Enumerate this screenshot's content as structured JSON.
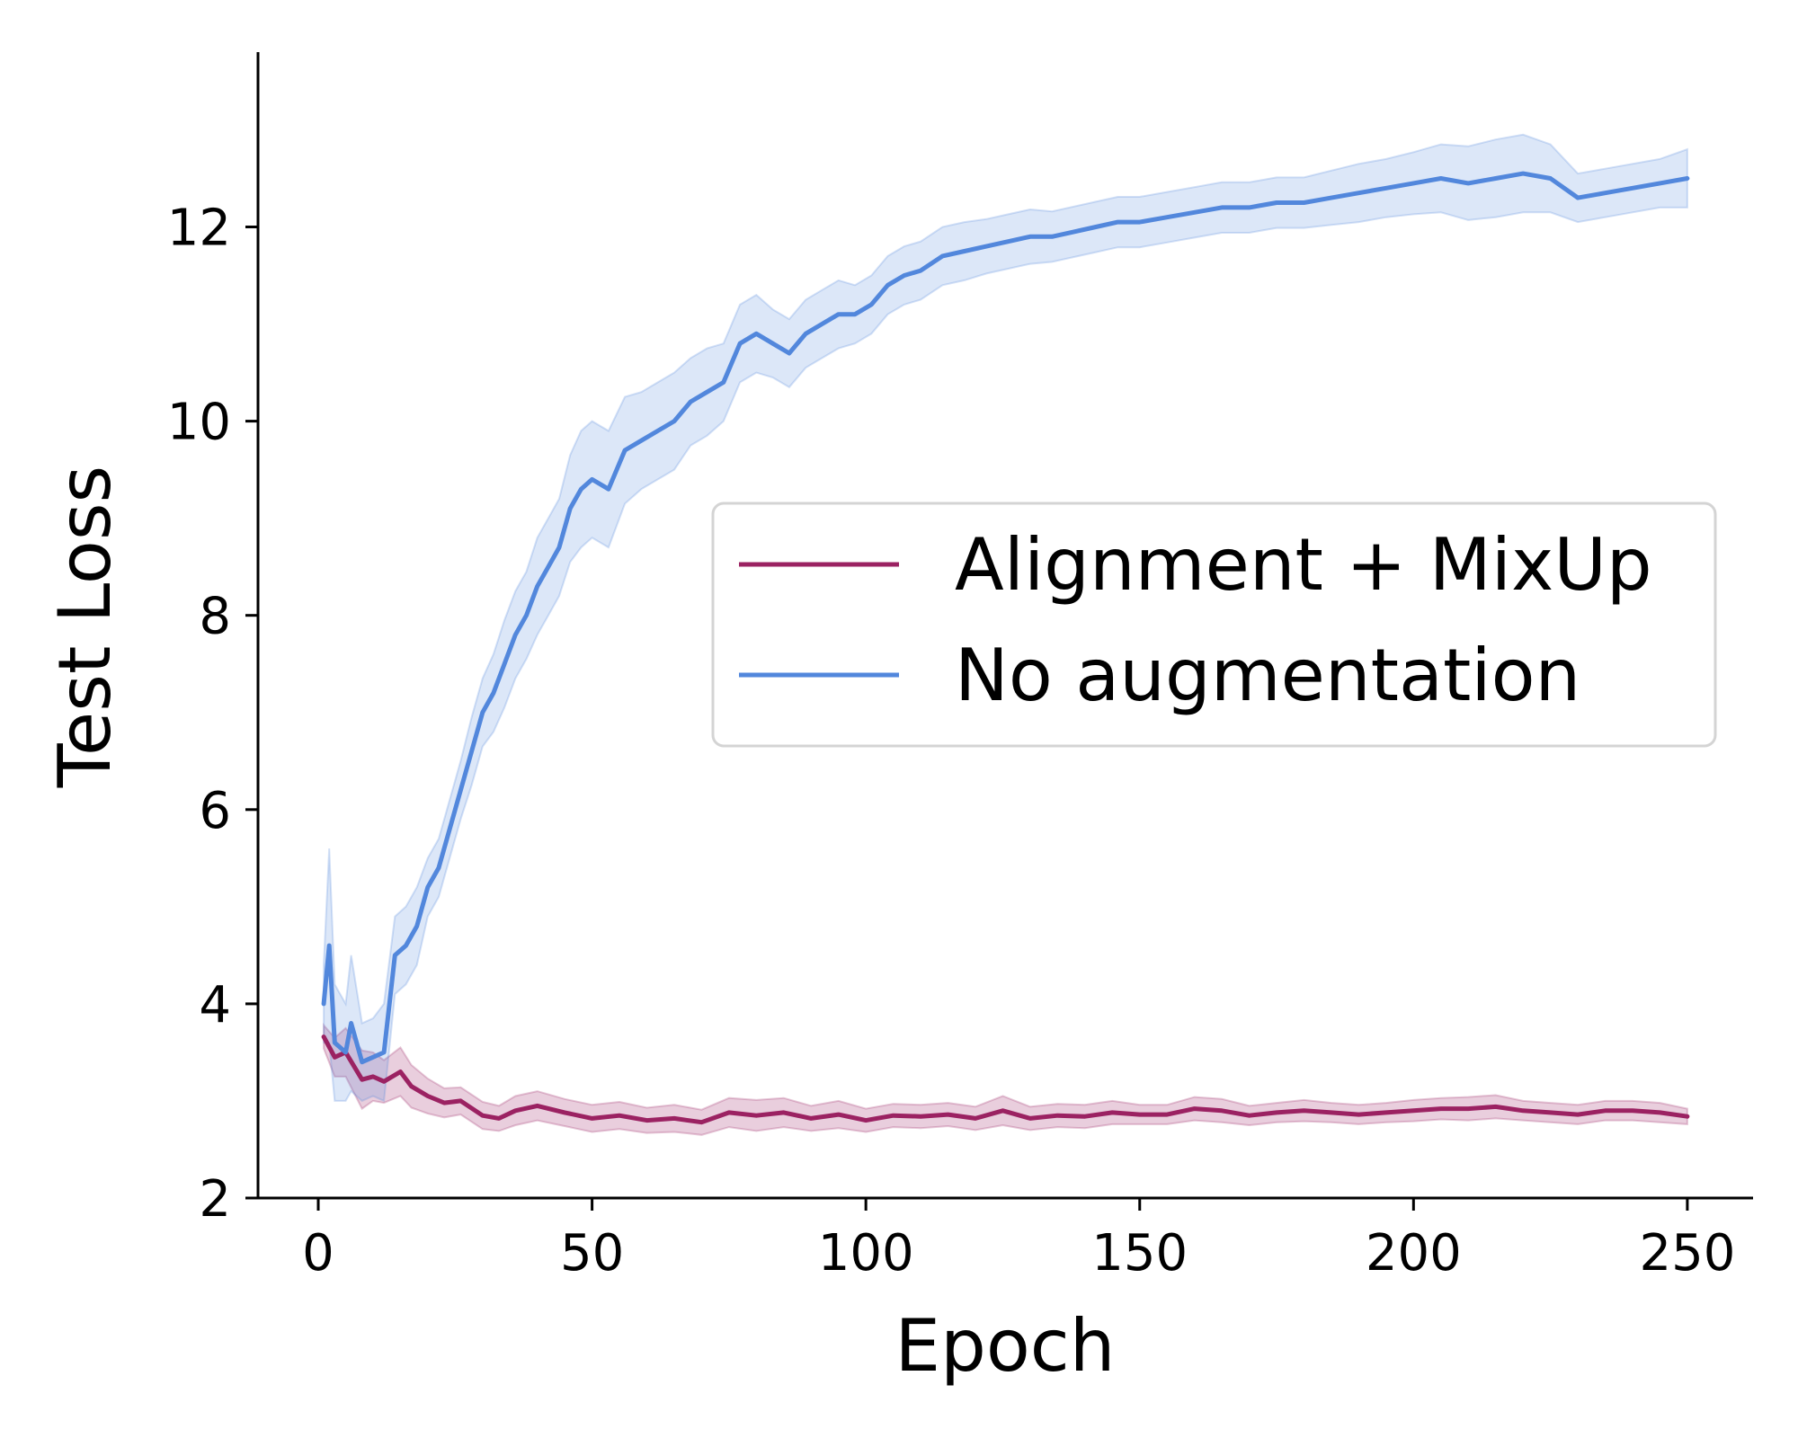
{
  "chart_data": {
    "type": "line",
    "title": "",
    "xlabel": "Epoch",
    "ylabel": "Test Loss",
    "xlim": [
      -11,
      262
    ],
    "ylim": [
      2,
      13.8
    ],
    "xticks": [
      0,
      50,
      100,
      150,
      200,
      250
    ],
    "yticks": [
      2,
      4,
      6,
      8,
      10,
      12
    ],
    "grid": false,
    "legend_position": "center-right",
    "series": [
      {
        "name": "Alignment + MixUp",
        "color": "#9b2262",
        "x": [
          1,
          3,
          5,
          8,
          10,
          12,
          15,
          17,
          20,
          23,
          26,
          30,
          33,
          36,
          40,
          45,
          50,
          55,
          60,
          65,
          70,
          75,
          80,
          85,
          90,
          95,
          100,
          105,
          110,
          115,
          120,
          125,
          130,
          135,
          140,
          145,
          150,
          155,
          160,
          165,
          170,
          175,
          180,
          185,
          190,
          195,
          200,
          205,
          210,
          215,
          220,
          225,
          230,
          235,
          240,
          245,
          250
        ],
        "y": [
          3.66,
          3.45,
          3.5,
          3.22,
          3.25,
          3.2,
          3.3,
          3.15,
          3.05,
          2.98,
          3.0,
          2.85,
          2.82,
          2.9,
          2.95,
          2.88,
          2.82,
          2.85,
          2.8,
          2.82,
          2.78,
          2.88,
          2.85,
          2.88,
          2.82,
          2.86,
          2.8,
          2.85,
          2.84,
          2.86,
          2.82,
          2.9,
          2.82,
          2.85,
          2.84,
          2.88,
          2.86,
          2.86,
          2.92,
          2.9,
          2.85,
          2.88,
          2.9,
          2.88,
          2.86,
          2.88,
          2.9,
          2.92,
          2.92,
          2.94,
          2.9,
          2.88,
          2.86,
          2.9,
          2.9,
          2.88,
          2.84
        ],
        "band": [
          0.12,
          0.2,
          0.25,
          0.3,
          0.25,
          0.22,
          0.25,
          0.22,
          0.18,
          0.15,
          0.14,
          0.14,
          0.13,
          0.15,
          0.15,
          0.14,
          0.14,
          0.14,
          0.13,
          0.14,
          0.13,
          0.15,
          0.16,
          0.15,
          0.13,
          0.14,
          0.12,
          0.12,
          0.12,
          0.12,
          0.12,
          0.15,
          0.12,
          0.12,
          0.12,
          0.12,
          0.1,
          0.1,
          0.12,
          0.12,
          0.1,
          0.1,
          0.11,
          0.1,
          0.1,
          0.1,
          0.11,
          0.11,
          0.12,
          0.12,
          0.1,
          0.1,
          0.1,
          0.1,
          0.1,
          0.1,
          0.08
        ]
      },
      {
        "name": "No augmentation",
        "color": "#5287dc",
        "x": [
          1,
          2,
          3,
          5,
          6,
          8,
          10,
          12,
          14,
          16,
          18,
          20,
          22,
          24,
          26,
          28,
          30,
          32,
          34,
          36,
          38,
          40,
          42,
          44,
          46,
          48,
          50,
          53,
          56,
          59,
          62,
          65,
          68,
          71,
          74,
          77,
          80,
          83,
          86,
          89,
          92,
          95,
          98,
          101,
          104,
          107,
          110,
          114,
          118,
          122,
          126,
          130,
          134,
          138,
          142,
          146,
          150,
          155,
          160,
          165,
          170,
          175,
          180,
          185,
          190,
          195,
          200,
          205,
          210,
          215,
          220,
          225,
          230,
          235,
          240,
          245,
          250
        ],
        "y": [
          4.0,
          4.6,
          3.6,
          3.5,
          3.8,
          3.4,
          3.45,
          3.5,
          4.5,
          4.6,
          4.8,
          5.2,
          5.4,
          5.8,
          6.2,
          6.6,
          7.0,
          7.2,
          7.5,
          7.8,
          8.0,
          8.3,
          8.5,
          8.7,
          9.1,
          9.3,
          9.4,
          9.3,
          9.7,
          9.8,
          9.9,
          10.0,
          10.2,
          10.3,
          10.4,
          10.8,
          10.9,
          10.8,
          10.7,
          10.9,
          11.0,
          11.1,
          11.1,
          11.2,
          11.4,
          11.5,
          11.55,
          11.7,
          11.75,
          11.8,
          11.85,
          11.9,
          11.9,
          11.95,
          12.0,
          12.05,
          12.05,
          12.1,
          12.15,
          12.2,
          12.2,
          12.25,
          12.25,
          12.3,
          12.35,
          12.4,
          12.45,
          12.5,
          12.45,
          12.5,
          12.55,
          12.5,
          12.3,
          12.35,
          12.4,
          12.45,
          12.5
        ],
        "band": [
          0.4,
          1.0,
          0.6,
          0.5,
          0.7,
          0.4,
          0.4,
          0.5,
          0.4,
          0.4,
          0.4,
          0.3,
          0.3,
          0.3,
          0.3,
          0.35,
          0.35,
          0.4,
          0.45,
          0.45,
          0.45,
          0.5,
          0.5,
          0.5,
          0.55,
          0.6,
          0.6,
          0.6,
          0.55,
          0.5,
          0.5,
          0.5,
          0.45,
          0.45,
          0.4,
          0.4,
          0.4,
          0.35,
          0.35,
          0.35,
          0.35,
          0.35,
          0.3,
          0.3,
          0.3,
          0.3,
          0.3,
          0.3,
          0.3,
          0.28,
          0.28,
          0.28,
          0.26,
          0.26,
          0.26,
          0.26,
          0.26,
          0.26,
          0.26,
          0.26,
          0.26,
          0.26,
          0.26,
          0.28,
          0.3,
          0.3,
          0.32,
          0.35,
          0.38,
          0.4,
          0.4,
          0.35,
          0.25,
          0.25,
          0.25,
          0.25,
          0.3
        ]
      }
    ]
  }
}
